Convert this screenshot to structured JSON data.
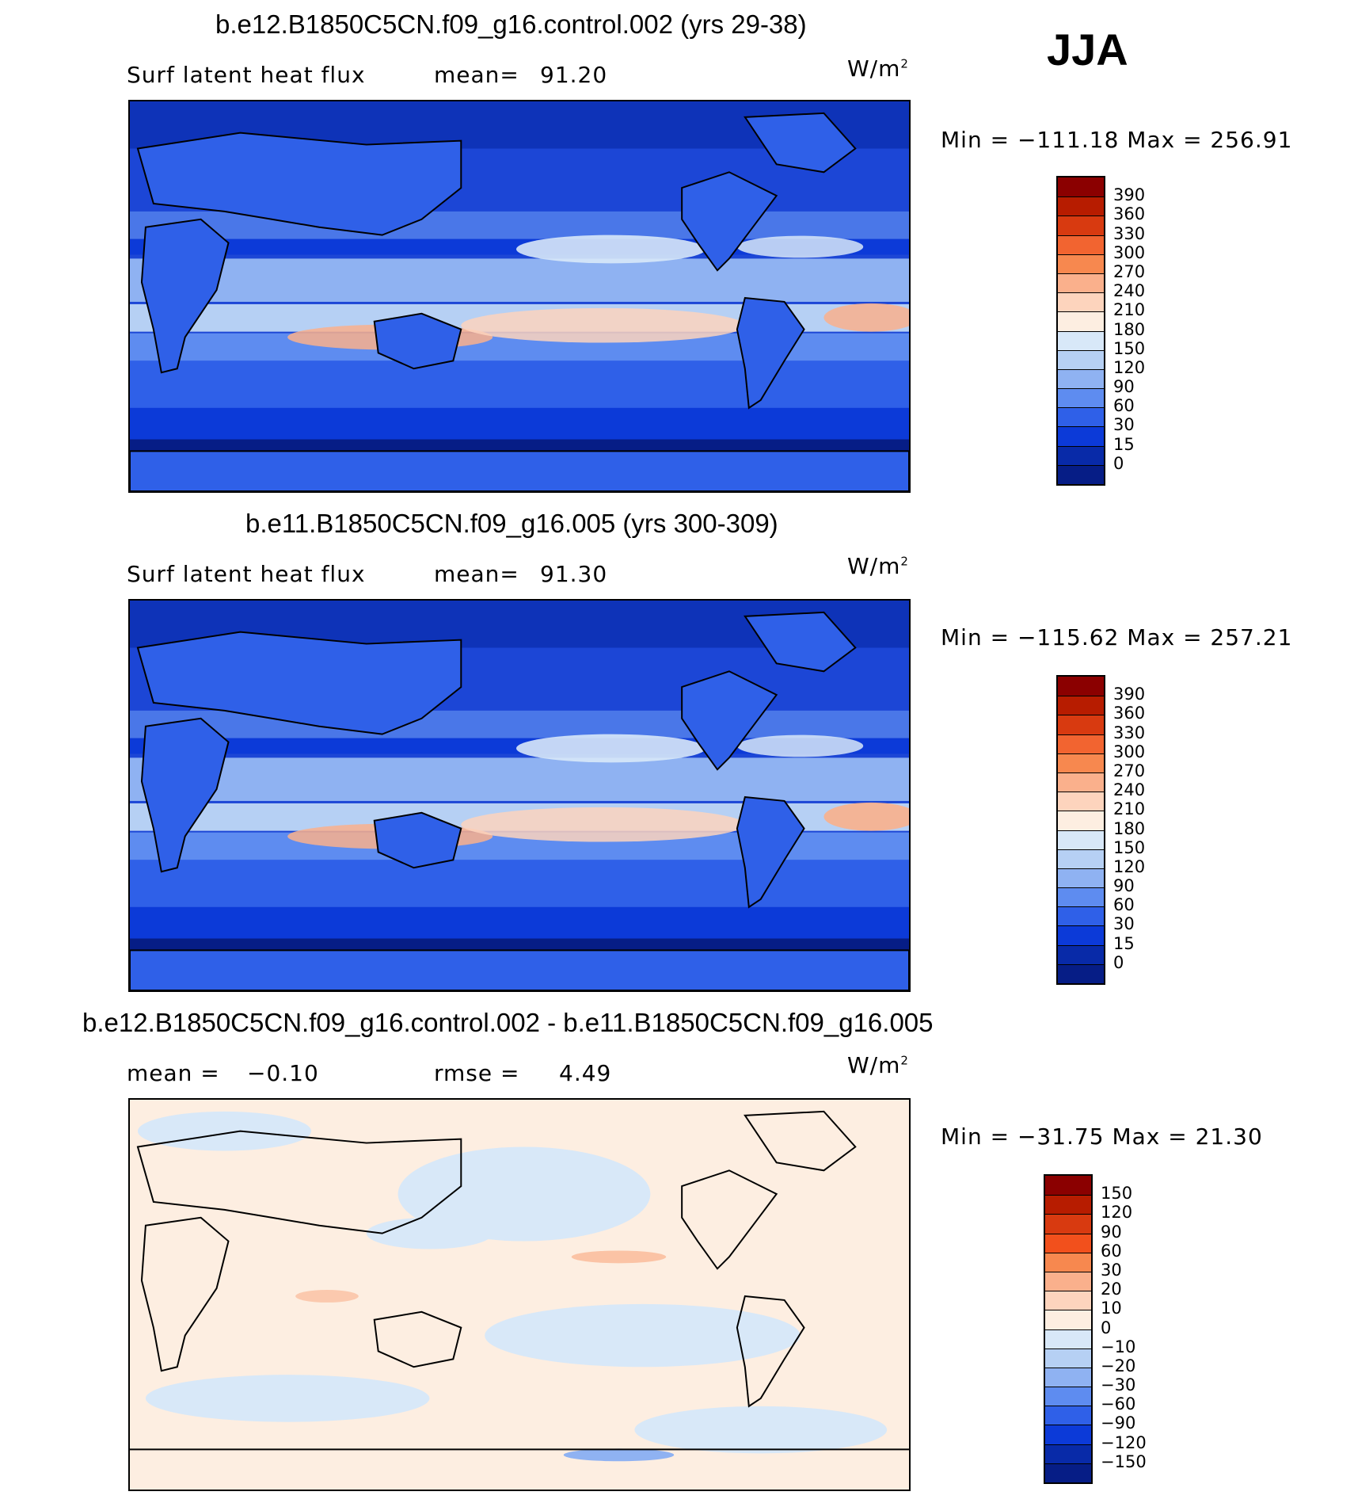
{
  "season": "JJA",
  "panels": [
    {
      "id": "panel-1",
      "title": "b.e12.B1850C5CN.f09_g16.control.002 (yrs 29-38)",
      "variable": "Surf latent heat flux",
      "stat_label": "mean=",
      "stat_value": "91.20",
      "units": "W/m",
      "units_sup": "2",
      "range_text": "Min = −111.18 Max = 256.91",
      "colorbar": {
        "labels": [
          "390",
          "360",
          "330",
          "300",
          "270",
          "240",
          "210",
          "180",
          "150",
          "120",
          "90",
          "60",
          "30",
          "15",
          "0"
        ],
        "colors": [
          "#8b0000",
          "#b71c00",
          "#d83a10",
          "#f26430",
          "#f7884f",
          "#fab08c",
          "#fdd4bd",
          "#fdeee1",
          "#d8e8f8",
          "#b6d0f4",
          "#8fb2f2",
          "#5e8cf0",
          "#2f60e8",
          "#0c3ad8",
          "#082aa8",
          "#061d86"
        ]
      },
      "chart_data": {
        "type": "heatmap",
        "title": "b.e12.B1850C5CN.f09_g16.control.002 (yrs 29-38)",
        "variable": "Surf latent heat flux",
        "mean": 91.2,
        "min": -111.18,
        "max": 256.91,
        "units": "W/m2",
        "levels": [
          0,
          15,
          30,
          60,
          90,
          120,
          150,
          180,
          210,
          240,
          270,
          300,
          330,
          360,
          390
        ]
      }
    },
    {
      "id": "panel-2",
      "title": "b.e11.B1850C5CN.f09_g16.005 (yrs 300-309)",
      "variable": "Surf latent heat flux",
      "stat_label": "mean=",
      "stat_value": "91.30",
      "units": "W/m",
      "units_sup": "2",
      "range_text": "Min = −115.62 Max = 257.21",
      "colorbar": {
        "labels": [
          "390",
          "360",
          "330",
          "300",
          "270",
          "240",
          "210",
          "180",
          "150",
          "120",
          "90",
          "60",
          "30",
          "15",
          "0"
        ],
        "colors": [
          "#8b0000",
          "#b71c00",
          "#d83a10",
          "#f26430",
          "#f7884f",
          "#fab08c",
          "#fdd4bd",
          "#fdeee1",
          "#d8e8f8",
          "#b6d0f4",
          "#8fb2f2",
          "#5e8cf0",
          "#2f60e8",
          "#0c3ad8",
          "#082aa8",
          "#061d86"
        ]
      },
      "chart_data": {
        "type": "heatmap",
        "title": "b.e11.B1850C5CN.f09_g16.005 (yrs 300-309)",
        "variable": "Surf latent heat flux",
        "mean": 91.3,
        "min": -115.62,
        "max": 257.21,
        "units": "W/m2",
        "levels": [
          0,
          15,
          30,
          60,
          90,
          120,
          150,
          180,
          210,
          240,
          270,
          300,
          330,
          360,
          390
        ]
      }
    },
    {
      "id": "panel-3",
      "title": "b.e12.B1850C5CN.f09_g16.control.002 - b.e11.B1850C5CN.f09_g16.005",
      "stat_label": "mean =",
      "stat_value": "−0.10",
      "stat2_label": "rmse =",
      "stat2_value": "4.49",
      "units": "W/m",
      "units_sup": "2",
      "range_text": "Min = −31.75 Max =  21.30",
      "colorbar": {
        "labels": [
          "150",
          "120",
          "90",
          "60",
          "30",
          "20",
          "10",
          "0",
          "−10",
          "−20",
          "−30",
          "−60",
          "−90",
          "−120",
          "−150"
        ],
        "colors": [
          "#8b0000",
          "#b71c00",
          "#d83a10",
          "#f2501c",
          "#f7884f",
          "#fab08c",
          "#fdd4bd",
          "#fdeee1",
          "#d8e8f8",
          "#b6d0f4",
          "#8fb2f2",
          "#5e8cf0",
          "#2f60e8",
          "#0c3ad8",
          "#082aa8",
          "#061d86"
        ]
      },
      "chart_data": {
        "type": "heatmap",
        "title": "b.e12.B1850C5CN.f09_g16.control.002 - b.e11.B1850C5CN.f09_g16.005",
        "mean": -0.1,
        "rmse": 4.49,
        "min": -31.75,
        "max": 21.3,
        "units": "W/m2",
        "levels": [
          -150,
          -120,
          -90,
          -60,
          -30,
          -20,
          -10,
          0,
          10,
          20,
          30,
          60,
          90,
          120,
          150
        ]
      }
    }
  ]
}
